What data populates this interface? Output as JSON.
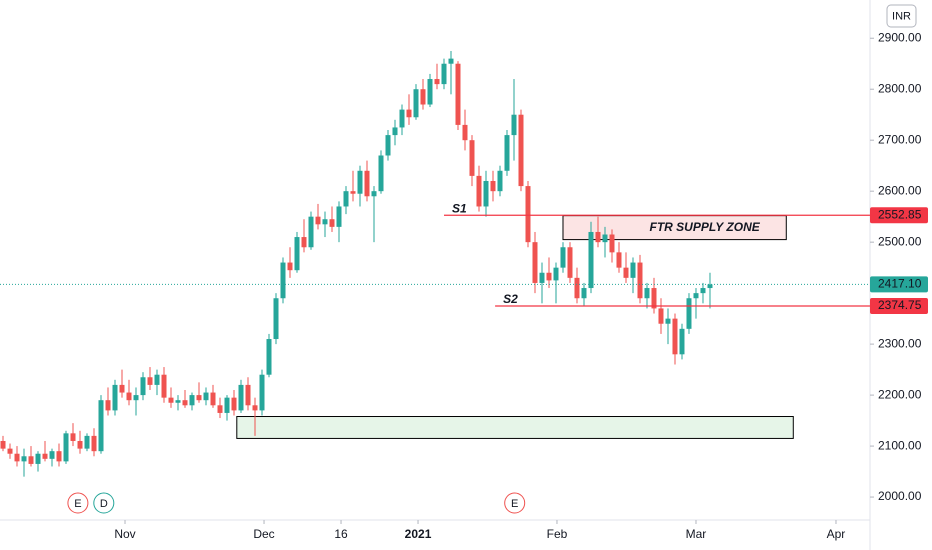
{
  "chart_data": {
    "type": "candlestick",
    "currency": "INR",
    "up_color": "#26a69a",
    "down_color": "#ef5350",
    "ylim": [
      1955,
      2975
    ],
    "yticks": [
      {
        "value": 2000,
        "label": "2000.00"
      },
      {
        "value": 2100,
        "label": "2100.00"
      },
      {
        "value": 2200,
        "label": "2200.00"
      },
      {
        "value": 2300,
        "label": "2300.00"
      },
      {
        "value": 2500,
        "label": "2500.00"
      },
      {
        "value": 2600,
        "label": "2600.00"
      },
      {
        "value": 2700,
        "label": "2700.00"
      },
      {
        "value": 2800,
        "label": "2800.00"
      },
      {
        "value": 2900,
        "label": "2900.00"
      }
    ],
    "xlim": [
      -0.43,
      123.86
    ],
    "xticks": [
      {
        "value": 17.43,
        "label": "Nov"
      },
      {
        "value": 37.29,
        "label": "Dec"
      },
      {
        "value": 48.29,
        "label": "16"
      },
      {
        "value": 59.29,
        "label": "2021"
      },
      {
        "value": 79.14,
        "label": "Feb"
      },
      {
        "value": 99,
        "label": "Mar"
      },
      {
        "value": 119,
        "label": "Apr"
      }
    ],
    "candles": [
      [
        2110,
        2120,
        2090,
        2095
      ],
      [
        2095,
        2105,
        2075,
        2085
      ],
      [
        2085,
        2100,
        2060,
        2070
      ],
      [
        2070,
        2095,
        2040,
        2080
      ],
      [
        2080,
        2100,
        2060,
        2065
      ],
      [
        2065,
        2090,
        2050,
        2085
      ],
      [
        2085,
        2110,
        2070,
        2075
      ],
      [
        2075,
        2095,
        2060,
        2090
      ],
      [
        2090,
        2105,
        2060,
        2070
      ],
      [
        2070,
        2130,
        2065,
        2125
      ],
      [
        2125,
        2145,
        2100,
        2110
      ],
      [
        2110,
        2130,
        2085,
        2095
      ],
      [
        2095,
        2125,
        2090,
        2120
      ],
      [
        2120,
        2135,
        2080,
        2090
      ],
      [
        2090,
        2200,
        2085,
        2190
      ],
      [
        2190,
        2215,
        2160,
        2170
      ],
      [
        2170,
        2230,
        2160,
        2220
      ],
      [
        2220,
        2250,
        2195,
        2205
      ],
      [
        2205,
        2230,
        2180,
        2190
      ],
      [
        2190,
        2215,
        2160,
        2200
      ],
      [
        2200,
        2245,
        2190,
        2235
      ],
      [
        2235,
        2255,
        2210,
        2220
      ],
      [
        2220,
        2250,
        2200,
        2240
      ],
      [
        2240,
        2255,
        2185,
        2195
      ],
      [
        2195,
        2215,
        2175,
        2185
      ],
      [
        2185,
        2200,
        2170,
        2190
      ],
      [
        2190,
        2210,
        2175,
        2180
      ],
      [
        2180,
        2205,
        2170,
        2200
      ],
      [
        2200,
        2225,
        2185,
        2190
      ],
      [
        2190,
        2215,
        2180,
        2205
      ],
      [
        2205,
        2220,
        2175,
        2180
      ],
      [
        2180,
        2195,
        2155,
        2165
      ],
      [
        2165,
        2200,
        2150,
        2195
      ],
      [
        2195,
        2210,
        2160,
        2170
      ],
      [
        2170,
        2230,
        2165,
        2220
      ],
      [
        2220,
        2235,
        2170,
        2180
      ],
      [
        2180,
        2195,
        2120,
        2170
      ],
      [
        2170,
        2250,
        2160,
        2240
      ],
      [
        2240,
        2320,
        2235,
        2310
      ],
      [
        2310,
        2400,
        2300,
        2390
      ],
      [
        2390,
        2470,
        2380,
        2460
      ],
      [
        2460,
        2490,
        2430,
        2445
      ],
      [
        2445,
        2520,
        2440,
        2510
      ],
      [
        2510,
        2545,
        2480,
        2490
      ],
      [
        2490,
        2560,
        2485,
        2550
      ],
      [
        2550,
        2575,
        2525,
        2535
      ],
      [
        2535,
        2560,
        2510,
        2545
      ],
      [
        2545,
        2570,
        2520,
        2530
      ],
      [
        2530,
        2580,
        2500,
        2570
      ],
      [
        2570,
        2610,
        2555,
        2600
      ],
      [
        2600,
        2640,
        2580,
        2595
      ],
      [
        2595,
        2650,
        2570,
        2640
      ],
      [
        2640,
        2660,
        2580,
        2590
      ],
      [
        2590,
        2610,
        2500,
        2600
      ],
      [
        2600,
        2680,
        2595,
        2670
      ],
      [
        2670,
        2720,
        2660,
        2710
      ],
      [
        2710,
        2740,
        2690,
        2725
      ],
      [
        2725,
        2770,
        2710,
        2760
      ],
      [
        2760,
        2790,
        2730,
        2745
      ],
      [
        2745,
        2810,
        2740,
        2800
      ],
      [
        2800,
        2820,
        2760,
        2770
      ],
      [
        2770,
        2830,
        2765,
        2820
      ],
      [
        2820,
        2850,
        2800,
        2810
      ],
      [
        2810,
        2860,
        2800,
        2850
      ],
      [
        2850,
        2875,
        2790,
        2860
      ],
      [
        2850,
        2855,
        2720,
        2730
      ],
      [
        2730,
        2760,
        2680,
        2700
      ],
      [
        2700,
        2710,
        2610,
        2630
      ],
      [
        2630,
        2650,
        2560,
        2570
      ],
      [
        2570,
        2640,
        2550,
        2620
      ],
      [
        2620,
        2640,
        2580,
        2600
      ],
      [
        2600,
        2650,
        2590,
        2640
      ],
      [
        2640,
        2720,
        2630,
        2710
      ],
      [
        2710,
        2820,
        2660,
        2750
      ],
      [
        2750,
        2760,
        2600,
        2610
      ],
      [
        2610,
        2620,
        2490,
        2500
      ],
      [
        2500,
        2520,
        2400,
        2420
      ],
      [
        2420,
        2460,
        2380,
        2440
      ],
      [
        2440,
        2470,
        2410,
        2425
      ],
      [
        2425,
        2460,
        2380,
        2450
      ],
      [
        2450,
        2500,
        2440,
        2490
      ],
      [
        2490,
        2500,
        2420,
        2430
      ],
      [
        2430,
        2450,
        2380,
        2390
      ],
      [
        2390,
        2420,
        2375,
        2410
      ],
      [
        2410,
        2540,
        2400,
        2520
      ],
      [
        2520,
        2550,
        2490,
        2500
      ],
      [
        2500,
        2530,
        2470,
        2515
      ],
      [
        2515,
        2525,
        2460,
        2480
      ],
      [
        2480,
        2500,
        2440,
        2450
      ],
      [
        2450,
        2480,
        2420,
        2430
      ],
      [
        2430,
        2470,
        2400,
        2460
      ],
      [
        2460,
        2475,
        2380,
        2390
      ],
      [
        2390,
        2420,
        2370,
        2410
      ],
      [
        2410,
        2430,
        2360,
        2370
      ],
      [
        2370,
        2390,
        2320,
        2340
      ],
      [
        2340,
        2370,
        2300,
        2350
      ],
      [
        2350,
        2360,
        2260,
        2280
      ],
      [
        2280,
        2340,
        2270,
        2330
      ],
      [
        2330,
        2400,
        2320,
        2390
      ],
      [
        2390,
        2410,
        2350,
        2400
      ],
      [
        2400,
        2420,
        2380,
        2410
      ],
      [
        2410,
        2440,
        2370,
        2417.1
      ]
    ],
    "price_lines": [
      {
        "name": "S1",
        "value": 2552.85,
        "start": 63,
        "color": "#f23645",
        "label_color": "#2f7fb0"
      },
      {
        "name": "S2",
        "value": 2374.75,
        "start": 70.3,
        "color": "#f23645",
        "label_color": "#26a69a"
      }
    ],
    "last_price": {
      "value": 2417.1,
      "label": "2417.10",
      "color": "#26a69a"
    },
    "zones": [
      {
        "name": "FTR SUPPLY ZONE",
        "x": [
          80,
          111.9
        ],
        "y": [
          2505,
          2552
        ],
        "fill": "#fce4e4"
      },
      {
        "x": [
          33.4,
          112.9
        ],
        "y": [
          2115,
          2158
        ],
        "fill": "#e6f5e8"
      }
    ],
    "events": [
      {
        "label": "E",
        "x": 10.7,
        "color": "#ef5350"
      },
      {
        "label": "D",
        "x": 14.4,
        "color": "#26a69a"
      },
      {
        "label": "E",
        "x": 73.1,
        "color": "#ef5350"
      }
    ]
  }
}
